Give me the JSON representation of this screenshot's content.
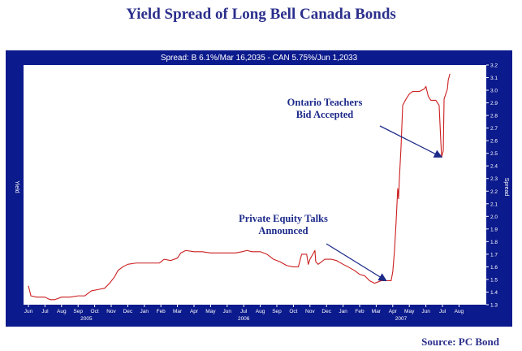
{
  "page": {
    "title": "Yield Spread of Long Bell Canada Bonds",
    "source": "Source: PC Bond"
  },
  "colors": {
    "title": "#2b2f8c",
    "frame": "#0b1a8c",
    "plot_bg": "#ffffff",
    "line": "#cc1f1f",
    "arrow": "#1c2a8a",
    "annotation": "#1c2a8a"
  },
  "chart_data": {
    "type": "line",
    "title": "Spread: B 6.1%/Mar 16,2035  -  CAN 5.75%/Jun 1,2033",
    "ylabel_left": "Yield",
    "ylabel_right": "Spread",
    "ylim": [
      1.3,
      3.2
    ],
    "y_ticks": [
      "1.3",
      "1.4",
      "1.5",
      "1.6",
      "1.7",
      "1.8",
      "1.9",
      "2.0",
      "2.1",
      "2.2",
      "2.3",
      "2.4",
      "2.5",
      "2.6",
      "2.7",
      "2.8",
      "2.9",
      "3.0",
      "3.1",
      "3.2"
    ],
    "x_ticks": [
      "Jun",
      "Jul",
      "Aug",
      "Sep",
      "Oct",
      "Nov",
      "Dec",
      "Jan",
      "Feb",
      "Mar",
      "Apr",
      "May",
      "Jun",
      "Jul",
      "Aug",
      "Sep",
      "Oct",
      "Nov",
      "Dec",
      "Jan",
      "Feb",
      "Mar",
      "Apr",
      "May",
      "Jun",
      "Jul",
      "Aug"
    ],
    "years": [
      {
        "label": "2005",
        "month_index": 3.5
      },
      {
        "label": "2006",
        "month_index": 13
      },
      {
        "label": "2007",
        "month_index": 22.5
      }
    ],
    "grid": false,
    "series": [
      {
        "values": [
          [
            0.0,
            1.45
          ],
          [
            0.15,
            1.37
          ],
          [
            0.5,
            1.36
          ],
          [
            1.0,
            1.36
          ],
          [
            1.3,
            1.34
          ],
          [
            1.6,
            1.34
          ],
          [
            2.0,
            1.36
          ],
          [
            2.5,
            1.36
          ],
          [
            3.0,
            1.37
          ],
          [
            3.4,
            1.37
          ],
          [
            3.8,
            1.41
          ],
          [
            4.2,
            1.42
          ],
          [
            4.6,
            1.43
          ],
          [
            4.9,
            1.47
          ],
          [
            5.2,
            1.52
          ],
          [
            5.4,
            1.57
          ],
          [
            5.7,
            1.6
          ],
          [
            6.0,
            1.62
          ],
          [
            6.5,
            1.63
          ],
          [
            7.0,
            1.63
          ],
          [
            7.5,
            1.63
          ],
          [
            7.9,
            1.63
          ],
          [
            8.2,
            1.66
          ],
          [
            8.6,
            1.65
          ],
          [
            9.0,
            1.67
          ],
          [
            9.2,
            1.71
          ],
          [
            9.5,
            1.73
          ],
          [
            10.0,
            1.72
          ],
          [
            10.5,
            1.72
          ],
          [
            11.0,
            1.71
          ],
          [
            11.5,
            1.71
          ],
          [
            12.0,
            1.71
          ],
          [
            12.5,
            1.71
          ],
          [
            12.9,
            1.72
          ],
          [
            13.2,
            1.73
          ],
          [
            13.5,
            1.72
          ],
          [
            14.0,
            1.72
          ],
          [
            14.4,
            1.7
          ],
          [
            14.8,
            1.66
          ],
          [
            15.2,
            1.64
          ],
          [
            15.6,
            1.61
          ],
          [
            16.0,
            1.6
          ],
          [
            16.3,
            1.6
          ],
          [
            16.5,
            1.7
          ],
          [
            16.8,
            1.7
          ],
          [
            16.9,
            1.62
          ],
          [
            17.0,
            1.66
          ],
          [
            17.3,
            1.73
          ],
          [
            17.35,
            1.64
          ],
          [
            17.5,
            1.62
          ],
          [
            17.9,
            1.66
          ],
          [
            18.3,
            1.66
          ],
          [
            18.6,
            1.65
          ],
          [
            19.0,
            1.62
          ],
          [
            19.3,
            1.6
          ],
          [
            19.7,
            1.57
          ],
          [
            20.0,
            1.54
          ],
          [
            20.3,
            1.53
          ],
          [
            20.6,
            1.49
          ],
          [
            20.9,
            1.47
          ],
          [
            21.1,
            1.48
          ],
          [
            21.3,
            1.49
          ],
          [
            21.6,
            1.49
          ],
          [
            21.9,
            1.49
          ],
          [
            22.0,
            1.56
          ],
          [
            22.1,
            1.72
          ],
          [
            22.2,
            1.95
          ],
          [
            22.3,
            2.22
          ],
          [
            22.35,
            2.14
          ],
          [
            22.4,
            2.3
          ],
          [
            22.5,
            2.55
          ],
          [
            22.6,
            2.88
          ],
          [
            22.8,
            2.93
          ],
          [
            23.0,
            2.97
          ],
          [
            23.2,
            2.99
          ],
          [
            23.6,
            2.99
          ],
          [
            23.9,
            3.01
          ],
          [
            24.0,
            3.03
          ],
          [
            24.15,
            2.95
          ],
          [
            24.3,
            2.92
          ],
          [
            24.6,
            2.92
          ],
          [
            24.8,
            2.88
          ],
          [
            24.9,
            2.6
          ],
          [
            24.95,
            2.47
          ],
          [
            25.05,
            2.52
          ],
          [
            25.1,
            2.93
          ],
          [
            25.2,
            2.97
          ],
          [
            25.3,
            3.01
          ],
          [
            25.35,
            3.08
          ],
          [
            25.45,
            3.13
          ]
        ]
      }
    ],
    "annotations": [
      {
        "lines": [
          "Ontario Teachers",
          "Bid Accepted"
        ],
        "points_to": [
          24.95,
          2.47
        ]
      },
      {
        "lines": [
          "Private Equity Talks",
          "Announced"
        ],
        "points_to": [
          21.6,
          1.49
        ]
      }
    ]
  }
}
